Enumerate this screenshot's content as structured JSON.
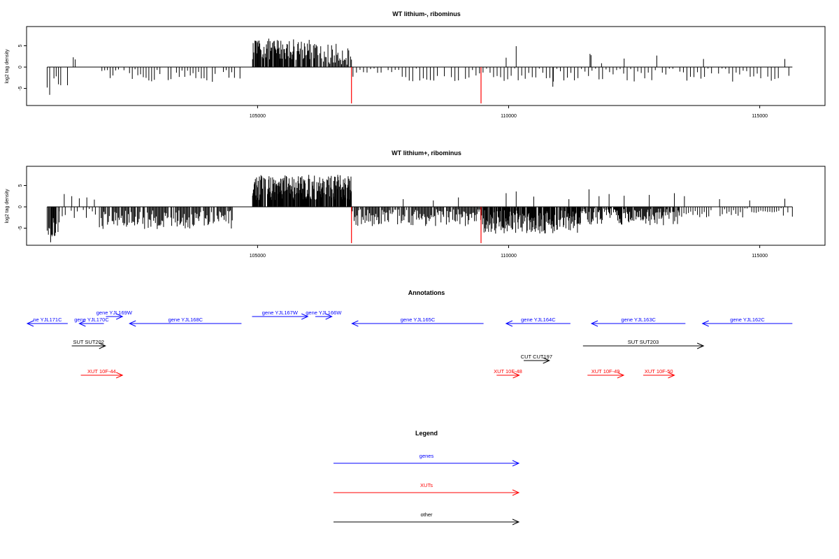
{
  "chart_data": [
    {
      "type": "bar",
      "title": "WT lithium-, ribominus",
      "xlabel": "",
      "ylabel": "log2 tag density",
      "xlim": [
        100400,
        116300
      ],
      "ylim": [
        -9,
        9.5
      ],
      "xticks": [
        105000,
        110000,
        115000
      ],
      "yticks": [
        -5,
        0,
        5
      ],
      "bar_color": "#000000",
      "vlines": {
        "color": "#ff0000",
        "x": [
          106870,
          109450
        ],
        "ymin": -8.5
      },
      "segments": [
        {
          "x0": 100810,
          "x1": 101220,
          "y": -3.5,
          "step": 45,
          "amp": 1.6
        },
        {
          "x0": 101900,
          "x1": 104650,
          "y": -2.0,
          "step": 55,
          "amp": 1.5
        },
        {
          "x0": 104900,
          "x1": 106150,
          "y": 4.2,
          "step": 12,
          "amp": 2.5
        },
        {
          "x0": 106150,
          "x1": 106870,
          "y": 3.0,
          "step": 18,
          "amp": 2.5
        },
        {
          "x0": 106900,
          "x1": 115650,
          "y": -1.8,
          "step": 70,
          "amp": 1.6
        }
      ],
      "spikes": [
        {
          "x": 101330,
          "y": 2.3
        },
        {
          "x": 101370,
          "y": 1.8
        },
        {
          "x": 109950,
          "y": 2.2
        },
        {
          "x": 110150,
          "y": 4.9
        },
        {
          "x": 111620,
          "y": 3.1
        },
        {
          "x": 111640,
          "y": 2.8
        },
        {
          "x": 111850,
          "y": 0.9
        },
        {
          "x": 112300,
          "y": 2.0
        },
        {
          "x": 112950,
          "y": 2.7
        },
        {
          "x": 113880,
          "y": 1.9
        },
        {
          "x": 115500,
          "y": 1.9
        },
        {
          "x": 100860,
          "y": -6.5
        },
        {
          "x": 110880,
          "y": -4.6
        }
      ]
    },
    {
      "type": "bar",
      "title": "WT lithium+, ribominus",
      "xlabel": "",
      "ylabel": "log2 tag density",
      "xlim": [
        100400,
        116300
      ],
      "ylim": [
        -9,
        9.5
      ],
      "xticks": [
        105000,
        110000,
        115000
      ],
      "yticks": [
        -5,
        0,
        5
      ],
      "bar_color": "#000000",
      "vlines": {
        "color": "#ff0000",
        "x": [
          106870,
          109450
        ],
        "ymin": -8.5
      },
      "segments": [
        {
          "x0": 100810,
          "x1": 101050,
          "y": -5.0,
          "step": 12,
          "amp": 2.5
        },
        {
          "x0": 101050,
          "x1": 101800,
          "y": -1.5,
          "step": 60,
          "amp": 1.2
        },
        {
          "x0": 101850,
          "x1": 104500,
          "y": -3.0,
          "step": 18,
          "amp": 2.2
        },
        {
          "x0": 104900,
          "x1": 106870,
          "y": 4.5,
          "step": 8,
          "amp": 3.0
        },
        {
          "x0": 106870,
          "x1": 109500,
          "y": -2.5,
          "step": 18,
          "amp": 2.0
        },
        {
          "x0": 109500,
          "x1": 111500,
          "y": -3.5,
          "step": 10,
          "amp": 2.8
        },
        {
          "x0": 111500,
          "x1": 113400,
          "y": -2.0,
          "step": 14,
          "amp": 2.3
        },
        {
          "x0": 113400,
          "x1": 115650,
          "y": -1.3,
          "step": 45,
          "amp": 1.3
        }
      ],
      "spikes": [
        {
          "x": 101150,
          "y": 3.0
        },
        {
          "x": 101300,
          "y": 2.5
        },
        {
          "x": 101450,
          "y": 2.0
        },
        {
          "x": 101600,
          "y": 2.2
        },
        {
          "x": 101750,
          "y": 1.7
        },
        {
          "x": 107900,
          "y": 1.8
        },
        {
          "x": 108500,
          "y": 1.5
        },
        {
          "x": 109000,
          "y": 2.2
        },
        {
          "x": 109950,
          "y": 3.2
        },
        {
          "x": 110150,
          "y": 3.6
        },
        {
          "x": 110500,
          "y": 2.4
        },
        {
          "x": 111200,
          "y": 1.8
        },
        {
          "x": 111600,
          "y": 4.1
        },
        {
          "x": 111800,
          "y": 2.5
        },
        {
          "x": 112000,
          "y": 3.0
        },
        {
          "x": 112300,
          "y": 2.6
        },
        {
          "x": 112800,
          "y": 2.8
        },
        {
          "x": 113300,
          "y": 3.2
        },
        {
          "x": 113500,
          "y": 2.5
        },
        {
          "x": 114200,
          "y": 1.8
        },
        {
          "x": 114800,
          "y": 1.5
        },
        {
          "x": 115500,
          "y": 1.9
        },
        {
          "x": 100880,
          "y": -8.3
        }
      ]
    },
    {
      "type": "table",
      "title": "Annotations",
      "features": [
        {
          "label": "ne YJL171C",
          "class": "gene",
          "x0": 100400,
          "x1": 101220,
          "dir": "left",
          "row": 0
        },
        {
          "label": "gene YJL170C",
          "class": "gene",
          "x0": 101450,
          "x1": 101940,
          "dir": "left",
          "row": 0
        },
        {
          "label": "gene YJL169W",
          "class": "gene",
          "x0": 101980,
          "x1": 102310,
          "dir": "right",
          "row": -1
        },
        {
          "label": "gene YJL168C",
          "class": "gene",
          "x0": 102450,
          "x1": 104680,
          "dir": "left",
          "row": 0
        },
        {
          "label": "gene YJL167W",
          "class": "gene",
          "x0": 104890,
          "x1": 106000,
          "dir": "right",
          "row": -1
        },
        {
          "label": "gene YJL166W",
          "class": "gene",
          "x0": 106150,
          "x1": 106480,
          "dir": "right",
          "row": -1
        },
        {
          "label": "gene YJL165C",
          "class": "gene",
          "x0": 106880,
          "x1": 109500,
          "dir": "left",
          "row": 0
        },
        {
          "label": "gene YJL164C",
          "class": "gene",
          "x0": 109950,
          "x1": 111230,
          "dir": "left",
          "row": 0
        },
        {
          "label": "gene YJL163C",
          "class": "gene",
          "x0": 111650,
          "x1": 113520,
          "dir": "left",
          "row": 0
        },
        {
          "label": "gene YJL162C",
          "class": "gene",
          "x0": 113860,
          "x1": 115650,
          "dir": "left",
          "row": 0
        },
        {
          "label": "SUT SUT202",
          "class": "other",
          "x0": 101300,
          "x1": 101970,
          "dir": "right",
          "row": 1
        },
        {
          "label": "SUT SUT203",
          "class": "other",
          "x0": 111480,
          "x1": 113880,
          "dir": "right",
          "row": 1
        },
        {
          "label": "CUT CUT197",
          "class": "other",
          "x0": 110300,
          "x1": 110810,
          "dir": "right",
          "row": 2
        },
        {
          "label": "XUT 10F-44",
          "class": "xut",
          "x0": 101480,
          "x1": 102310,
          "dir": "right",
          "row": 3
        },
        {
          "label": "XUT 10F-48",
          "class": "xut",
          "x0": 109760,
          "x1": 110210,
          "dir": "right",
          "row": 3
        },
        {
          "label": "XUT 10F-49",
          "class": "xut",
          "x0": 111570,
          "x1": 112290,
          "dir": "right",
          "row": 3
        },
        {
          "label": "XUT 10F-50",
          "class": "xut",
          "x0": 112680,
          "x1": 113300,
          "dir": "right",
          "row": 3
        }
      ]
    }
  ],
  "legend": {
    "title": "Legend",
    "items": [
      {
        "label": "genes",
        "color": "#0000ff"
      },
      {
        "label": "XUTs",
        "color": "#ff0000"
      },
      {
        "label": "other",
        "color": "#000000"
      }
    ]
  },
  "colors": {
    "gene": "#0000ff",
    "xut": "#ff0000",
    "other": "#000000"
  }
}
